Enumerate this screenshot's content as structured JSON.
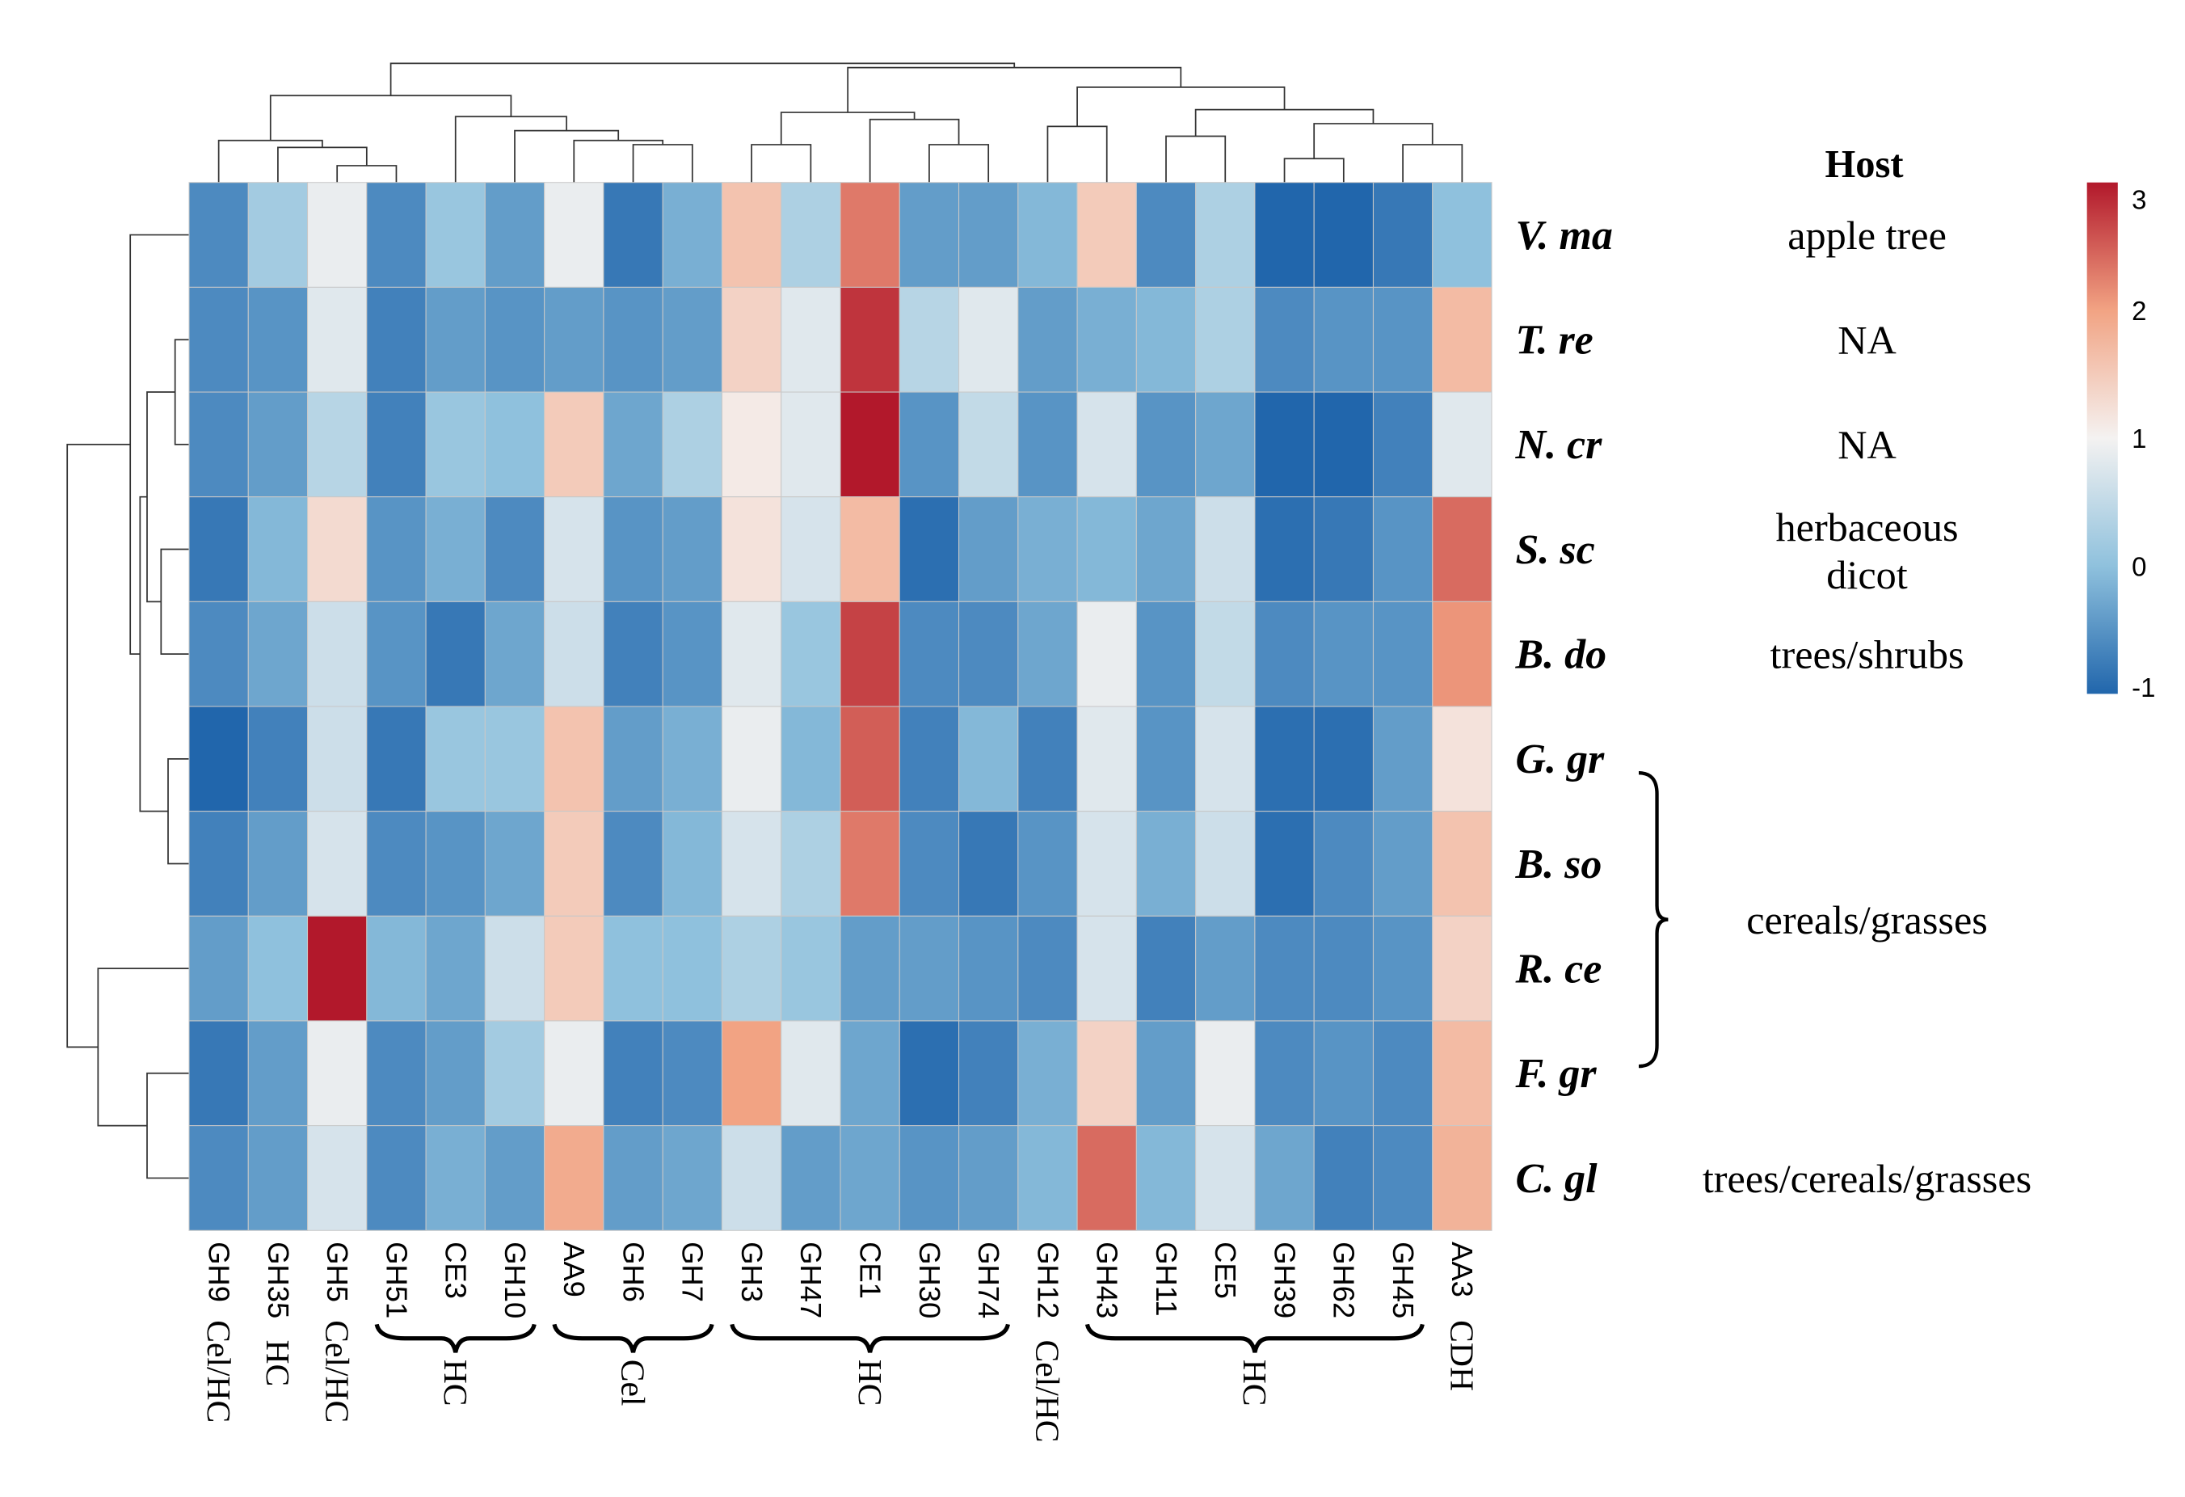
{
  "chart_data": {
    "type": "heatmap",
    "title": "",
    "rows": [
      "V. ma",
      "T. re",
      "N. cr",
      "S. sc",
      "B. do",
      "G. gr",
      "B. so",
      "R. ce",
      "F. gr",
      "C. gl"
    ],
    "columns": [
      "GH9",
      "GH35",
      "GH5",
      "GH51",
      "CE3",
      "GH10",
      "AA9",
      "GH6",
      "GH7",
      "GH3",
      "GH47",
      "CE1",
      "GH30",
      "GH74",
      "GH12",
      "GH43",
      "GH11",
      "CE5",
      "GH39",
      "GH62",
      "GH45",
      "AA3"
    ],
    "values": [
      [
        -0.6,
        0.2,
        0.9,
        -0.6,
        0.1,
        -0.4,
        0.9,
        -0.8,
        -0.2,
        1.6,
        0.3,
        2.3,
        -0.4,
        -0.4,
        -0.1,
        1.5,
        -0.6,
        0.3,
        -1.0,
        -1.0,
        -0.8,
        0.0
      ],
      [
        -0.6,
        -0.5,
        0.8,
        -0.7,
        -0.4,
        -0.5,
        -0.4,
        -0.5,
        -0.4,
        1.4,
        0.8,
        2.8,
        0.4,
        0.8,
        -0.4,
        -0.2,
        -0.1,
        0.3,
        -0.6,
        -0.5,
        -0.5,
        1.7
      ],
      [
        -0.6,
        -0.4,
        0.4,
        -0.7,
        0.1,
        0.0,
        1.5,
        -0.3,
        0.3,
        1.1,
        0.8,
        3.0,
        -0.5,
        0.5,
        -0.5,
        0.7,
        -0.5,
        -0.3,
        -1.0,
        -1.0,
        -0.7,
        0.8
      ],
      [
        -0.8,
        -0.1,
        1.3,
        -0.5,
        -0.2,
        -0.6,
        0.7,
        -0.5,
        -0.4,
        1.2,
        0.7,
        1.7,
        -0.9,
        -0.4,
        -0.2,
        -0.1,
        -0.3,
        0.6,
        -0.9,
        -0.8,
        -0.5,
        2.4
      ],
      [
        -0.6,
        -0.3,
        0.6,
        -0.5,
        -0.8,
        -0.3,
        0.6,
        -0.7,
        -0.5,
        0.8,
        0.1,
        2.7,
        -0.6,
        -0.6,
        -0.3,
        0.9,
        -0.5,
        0.5,
        -0.6,
        -0.5,
        -0.5,
        2.1
      ],
      [
        -1.0,
        -0.7,
        0.6,
        -0.8,
        0.1,
        0.1,
        1.6,
        -0.4,
        -0.2,
        0.9,
        -0.1,
        2.5,
        -0.7,
        -0.1,
        -0.7,
        0.8,
        -0.5,
        0.7,
        -0.9,
        -0.9,
        -0.4,
        1.2
      ],
      [
        -0.7,
        -0.4,
        0.7,
        -0.6,
        -0.5,
        -0.3,
        1.5,
        -0.6,
        -0.1,
        0.7,
        0.3,
        2.3,
        -0.6,
        -0.8,
        -0.5,
        0.7,
        -0.2,
        0.6,
        -0.9,
        -0.6,
        -0.4,
        1.6
      ],
      [
        -0.4,
        0.0,
        3.0,
        -0.1,
        -0.3,
        0.6,
        1.5,
        0.0,
        0.0,
        0.3,
        0.1,
        -0.4,
        -0.4,
        -0.5,
        -0.6,
        0.7,
        -0.7,
        -0.4,
        -0.6,
        -0.6,
        -0.5,
        1.4
      ],
      [
        -0.8,
        -0.4,
        0.9,
        -0.6,
        -0.4,
        0.2,
        0.9,
        -0.7,
        -0.6,
        2.0,
        0.8,
        -0.3,
        -0.9,
        -0.7,
        -0.2,
        1.4,
        -0.4,
        0.9,
        -0.6,
        -0.5,
        -0.6,
        1.7
      ],
      [
        -0.6,
        -0.4,
        0.7,
        -0.6,
        -0.2,
        -0.4,
        1.9,
        -0.4,
        -0.3,
        0.6,
        -0.4,
        -0.3,
        -0.5,
        -0.4,
        -0.1,
        2.4,
        -0.1,
        0.7,
        -0.3,
        -0.7,
        -0.6,
        1.8
      ]
    ],
    "color_scale": {
      "min": -1,
      "max": 3,
      "ticks": [
        "3",
        "2",
        "1",
        "0",
        "-1"
      ],
      "stops": [
        [
          "-1",
          "#2166ac"
        ],
        [
          "0",
          "#8fc1dd"
        ],
        [
          "1",
          "#f4f2f1"
        ],
        [
          "2",
          "#f2a383"
        ],
        [
          "3",
          "#b2182b"
        ]
      ]
    },
    "column_groups": [
      {
        "label": "Cel/HC",
        "from": 0,
        "to": 0
      },
      {
        "label": "HC",
        "from": 1,
        "to": 1
      },
      {
        "label": "Cel/HC",
        "from": 2,
        "to": 2
      },
      {
        "label": "HC",
        "from": 3,
        "to": 5
      },
      {
        "label": "Cel",
        "from": 6,
        "to": 8
      },
      {
        "label": "HC",
        "from": 9,
        "to": 13
      },
      {
        "label": "Cel/HC",
        "from": 14,
        "to": 14
      },
      {
        "label": "HC",
        "from": 15,
        "to": 20
      },
      {
        "label": "CDH",
        "from": 21,
        "to": 21
      }
    ],
    "host": {
      "header": "Host",
      "entries": [
        {
          "row": 0,
          "label": "apple tree"
        },
        {
          "row": 1,
          "label": "NA"
        },
        {
          "row": 2,
          "label": "NA"
        },
        {
          "row": 3,
          "label": "herbaceous",
          "label2": "dicot"
        },
        {
          "row": 4,
          "label": "trees/shrubs"
        },
        {
          "row": 9,
          "label": "trees/cereals/grasses"
        }
      ],
      "group": {
        "label": "cereals/grasses",
        "from": 5,
        "to": 8
      }
    },
    "xlabel": "",
    "ylabel": "",
    "legend": "right"
  }
}
